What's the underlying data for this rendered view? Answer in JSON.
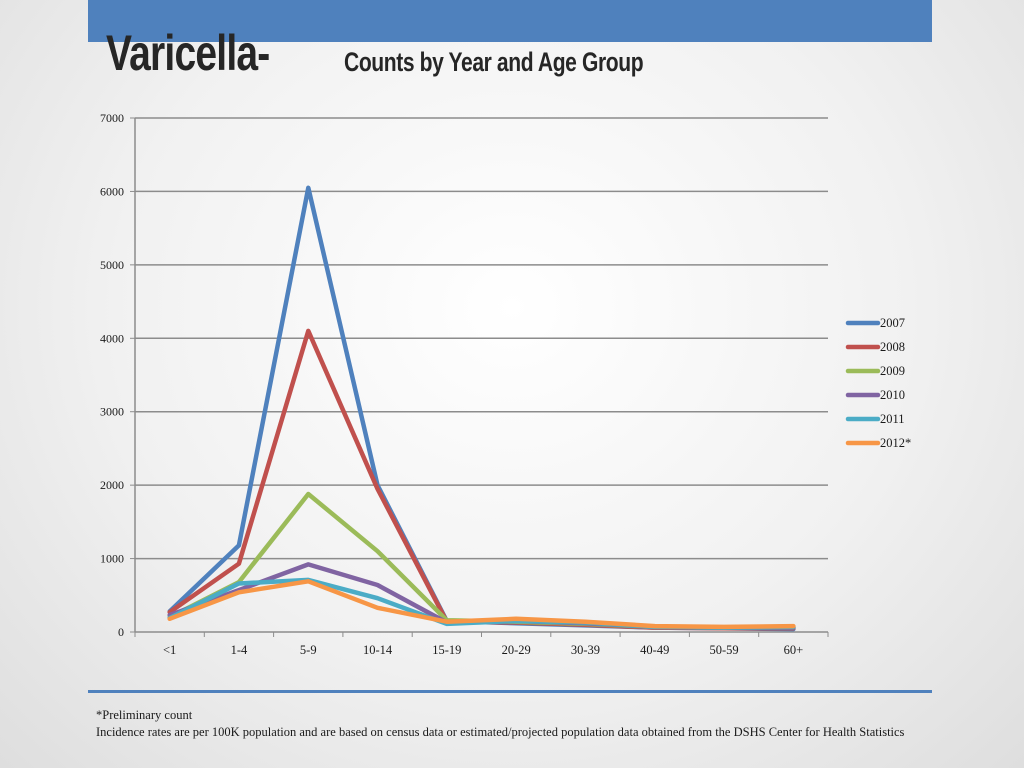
{
  "slide": {
    "title_main": "Varicella-",
    "title_sub": "Counts by Year and Age Group",
    "footnote_line1": "*Preliminary count",
    "footnote_line2": "Incidence rates are per 100K population and are based on census data or estimated/projected population data obtained from the DSHS Center for Health Statistics"
  },
  "colors": {
    "header_bar": "#4f81bd",
    "divider": "#4f81bd"
  },
  "chart_data": {
    "type": "line",
    "title": "",
    "xlabel": "",
    "ylabel": "",
    "categories": [
      "<1",
      "1-4",
      "5-9",
      "10-14",
      "15-19",
      "20-29",
      "30-39",
      "40-49",
      "50-59",
      "60+"
    ],
    "ylim": [
      0,
      7000
    ],
    "yticks": [
      0,
      1000,
      2000,
      3000,
      4000,
      5000,
      6000,
      7000
    ],
    "grid": true,
    "legend_position": "right",
    "series": [
      {
        "name": "2007",
        "color": "#4f81bd",
        "values": [
          280,
          1180,
          6050,
          2000,
          150,
          120,
          90,
          60,
          50,
          40
        ]
      },
      {
        "name": "2008",
        "color": "#c0504d",
        "values": [
          270,
          930,
          4100,
          1950,
          140,
          130,
          100,
          60,
          50,
          50
        ]
      },
      {
        "name": "2009",
        "color": "#9bbb59",
        "values": [
          200,
          680,
          1880,
          1100,
          160,
          140,
          110,
          70,
          60,
          60
        ]
      },
      {
        "name": "2010",
        "color": "#8064a2",
        "values": [
          230,
          570,
          920,
          640,
          130,
          150,
          120,
          70,
          60,
          60
        ]
      },
      {
        "name": "2011",
        "color": "#4bacc6",
        "values": [
          190,
          660,
          710,
          460,
          110,
          150,
          130,
          70,
          60,
          70
        ]
      },
      {
        "name": "2012*",
        "color": "#f79646",
        "values": [
          180,
          540,
          690,
          330,
          140,
          180,
          140,
          80,
          70,
          80
        ]
      }
    ]
  }
}
